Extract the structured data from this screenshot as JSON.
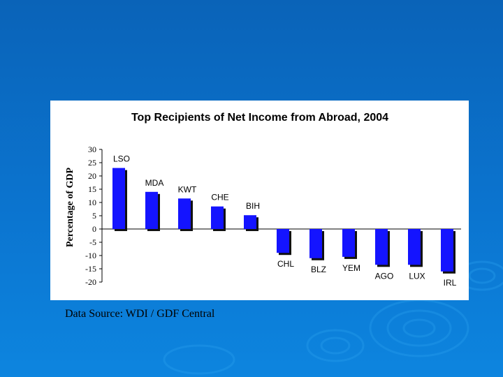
{
  "source_note": "Data Source: WDI / GDF Central",
  "colors": {
    "bar": "#1414ff",
    "bar_shadow": "#111111",
    "text": "#000000"
  },
  "chart_data": {
    "type": "bar",
    "title": "Top Recipients of Net Income from Abroad, 2004",
    "xlabel": "",
    "ylabel": "Percentage of GDP",
    "categories": [
      "LSO",
      "MDA",
      "KWT",
      "CHE",
      "BIH",
      "CHL",
      "BLZ",
      "YEM",
      "AGO",
      "LUX",
      "IRL"
    ],
    "values": [
      23,
      14,
      11.5,
      8.5,
      5.2,
      -9,
      -11,
      -10.5,
      -13.5,
      -13.5,
      -16
    ],
    "ylim": [
      -20,
      30
    ],
    "yticks": [
      30,
      25,
      20,
      15,
      10,
      5,
      0,
      -5,
      -10,
      -15,
      -20
    ],
    "grid": false,
    "legend": "none"
  }
}
